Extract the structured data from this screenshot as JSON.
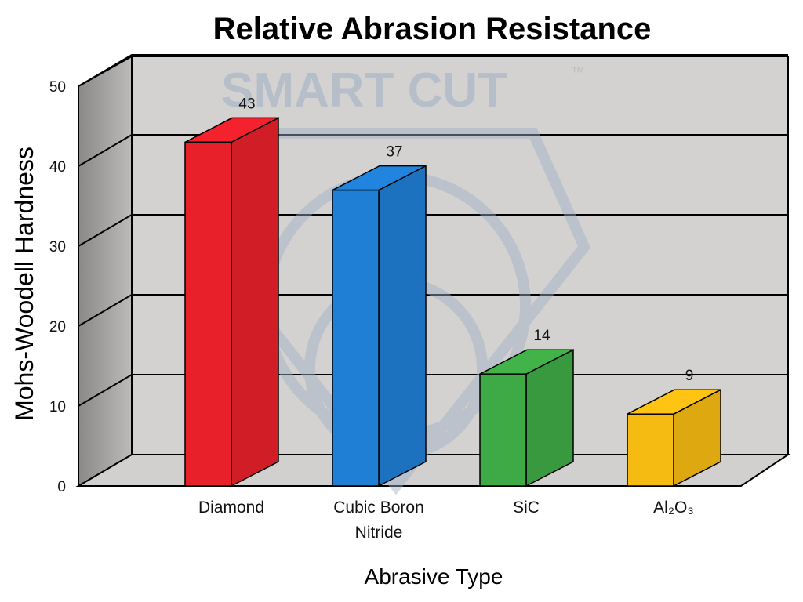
{
  "chart_data": {
    "type": "bar",
    "title": "Relative Abrasion Resistance",
    "xlabel": "Abrasive Type",
    "ylabel": "Mohs-Woodell Hardness",
    "categories": [
      {
        "line1": "Diamond",
        "line2": ""
      },
      {
        "line1": "Cubic Boron",
        "line2": "Nitride"
      },
      {
        "line1": "SiC",
        "line2": ""
      },
      {
        "line1": "Al₂O₃",
        "line2": ""
      }
    ],
    "values": [
      43,
      37,
      14,
      9
    ],
    "value_labels": [
      "43",
      "37",
      "14",
      "9"
    ],
    "bar_colors": [
      "#e8202a",
      "#1f7fd4",
      "#3eaa45",
      "#f6bb12"
    ],
    "ylim": [
      0,
      50
    ],
    "yticks": [
      "0",
      "10",
      "20",
      "30",
      "40",
      "50"
    ],
    "grid": true,
    "style": "3d"
  },
  "watermark": {
    "text": "SMART CUT",
    "trademark": "™"
  }
}
